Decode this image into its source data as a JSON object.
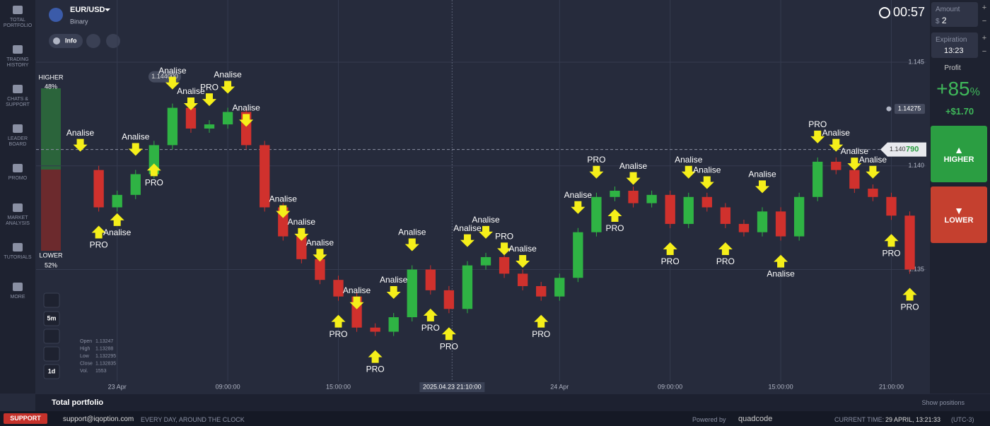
{
  "sidebar": [
    [
      "TOTAL",
      "PORTFOLIO"
    ],
    [
      "TRADING",
      "HISTORY"
    ],
    [
      "CHATS &",
      "SUPPORT"
    ],
    [
      "LEADER",
      "BOARD"
    ],
    [
      "PROMO"
    ],
    [
      "MARKET",
      "ANALYSIS"
    ],
    [
      "TUTORIALS"
    ],
    [
      "MORE"
    ]
  ],
  "header": {
    "pair": "EUR/USD",
    "mode": "Binary",
    "info": "Info",
    "timer": "00:57"
  },
  "trade_panel": {
    "amount_label": "Amount",
    "amount_currency": "$",
    "amount": "2",
    "plus": "+",
    "minus": "−",
    "expiration_label": "Expiration",
    "expiration": "13:23",
    "profit_label": "Profit",
    "profit_pct": "+85",
    "pct_sign": "%",
    "profit_amount": "+$1.70",
    "higher": "HIGHER",
    "lower": "LOWER"
  },
  "sentiment": {
    "higher_label": "HIGHER",
    "higher_pct": "48%",
    "lower_label": "LOWER",
    "lower_pct": "52%"
  },
  "chart_tools": [
    "5m",
    "1d"
  ],
  "ohlc": [
    [
      "Open",
      "1.13247"
    ],
    [
      "High",
      "1.13288"
    ],
    [
      "Low",
      "1.132295"
    ],
    [
      "Close",
      "1.132835"
    ],
    [
      "Vol.",
      "1553"
    ]
  ],
  "chart": {
    "type": "candlestick",
    "x": [
      -2,
      -1,
      0,
      1,
      2,
      3,
      4,
      5,
      6,
      7,
      8,
      9,
      10,
      11,
      12,
      13,
      14,
      15,
      16,
      17,
      18,
      19,
      20,
      21,
      22,
      23,
      24,
      25,
      26,
      27,
      28,
      29,
      30,
      31,
      32,
      33,
      34,
      35,
      36,
      37,
      38,
      39,
      40,
      41,
      42,
      43
    ],
    "values": [
      1.1398,
      1.138,
      1.1386,
      1.1396,
      1.141,
      1.1428,
      1.1418,
      1.142,
      1.1426,
      1.141,
      1.138,
      1.1366,
      1.1355,
      1.1345,
      1.1337,
      1.1322,
      1.132,
      1.1327,
      1.135,
      1.134,
      1.1331,
      1.1352,
      1.1356,
      1.1348,
      1.1342,
      1.1337,
      1.1346,
      1.1368,
      1.1385,
      1.1388,
      1.1382,
      1.1386,
      1.1372,
      1.1385,
      1.138,
      1.1372,
      1.1368,
      1.1378,
      1.1366,
      1.1385,
      1.1402,
      1.1398,
      1.1389,
      1.1385,
      1.1376,
      1.135
    ],
    "xlim": [
      -4.4,
      43.9
    ],
    "xticks": [
      {
        "value": 0,
        "label": "23 Apr"
      },
      {
        "value": 6,
        "label": "09:00:00"
      },
      {
        "value": 12,
        "label": "15:00:00"
      },
      {
        "value": 24,
        "label": "24 Apr"
      },
      {
        "value": 30,
        "label": "09:00:00"
      },
      {
        "value": 36,
        "label": "15:00:00"
      },
      {
        "value": 42,
        "label": "21:00:00"
      }
    ],
    "cursor": {
      "value": 18.17,
      "label": "2025.04.23 21:10:00"
    },
    "ylim": [
      1.1296,
      1.148
    ],
    "yticks": [
      1.145,
      {
        "value": 1.14,
        "label": "1.140"
      },
      1.135
    ],
    "price_marker": {
      "value": 1.1443,
      "label": "1.144000"
    },
    "alert_price": 1.14275,
    "current_price": {
      "value": 1.14079,
      "label_main": "1.140",
      "label_tail": "790"
    },
    "signals": [
      {
        "x": -2,
        "label": "Analise",
        "direction": "down"
      },
      {
        "x": -1,
        "label": "PRO",
        "direction": "up"
      },
      {
        "x": 0,
        "label": "Analise",
        "direction": "up"
      },
      {
        "x": 1,
        "label": "Analise",
        "direction": "down"
      },
      {
        "x": 2,
        "label": "PRO",
        "direction": "up"
      },
      {
        "x": 3,
        "label": "Analise",
        "direction": "down"
      },
      {
        "x": 4,
        "label": "Analise",
        "direction": "down"
      },
      {
        "x": 5,
        "label": "PRO",
        "direction": "down"
      },
      {
        "x": 6,
        "label": "Analise",
        "direction": "down"
      },
      {
        "x": 7,
        "label": "Analise",
        "direction": "down"
      },
      {
        "x": 9,
        "label": "Analise",
        "direction": "down"
      },
      {
        "x": 10,
        "label": "Analise",
        "direction": "down"
      },
      {
        "x": 11,
        "label": "Analise",
        "direction": "down"
      },
      {
        "x": 12,
        "label": "PRO",
        "direction": "up"
      },
      {
        "x": 13,
        "label": "Analise",
        "direction": "down"
      },
      {
        "x": 14,
        "label": "PRO",
        "direction": "up"
      },
      {
        "x": 15,
        "label": "Analise",
        "direction": "down"
      },
      {
        "x": 16,
        "label": "Analise",
        "direction": "down"
      },
      {
        "x": 17,
        "label": "PRO",
        "direction": "up"
      },
      {
        "x": 18,
        "label": "PRO",
        "direction": "up"
      },
      {
        "x": 19,
        "label": "Analise",
        "direction": "down"
      },
      {
        "x": 20,
        "label": "Analise",
        "direction": "down"
      },
      {
        "x": 21,
        "label": "PRO",
        "direction": "down"
      },
      {
        "x": 22,
        "label": "Analise",
        "direction": "down"
      },
      {
        "x": 23,
        "label": "PRO",
        "direction": "up"
      },
      {
        "x": 25,
        "label": "Analise",
        "direction": "down"
      },
      {
        "x": 26,
        "label": "PRO",
        "direction": "down"
      },
      {
        "x": 27,
        "label": "PRO",
        "direction": "up"
      },
      {
        "x": 28,
        "label": "Analise",
        "direction": "down"
      },
      {
        "x": 30,
        "label": "PRO",
        "direction": "up"
      },
      {
        "x": 31,
        "label": "Analise",
        "direction": "down"
      },
      {
        "x": 32,
        "label": "Analise",
        "direction": "down"
      },
      {
        "x": 33,
        "label": "PRO",
        "direction": "up"
      },
      {
        "x": 35,
        "label": "Analise",
        "direction": "down"
      },
      {
        "x": 36,
        "label": "Analise",
        "direction": "up"
      },
      {
        "x": 38,
        "label": "PRO",
        "direction": "down"
      },
      {
        "x": 39,
        "label": "Analise",
        "direction": "down"
      },
      {
        "x": 40,
        "label": "Analise",
        "direction": "down"
      },
      {
        "x": 41,
        "label": "Analise",
        "direction": "down"
      },
      {
        "x": 42,
        "label": "PRO",
        "direction": "up"
      },
      {
        "x": 43,
        "label": "PRO",
        "direction": "up"
      }
    ]
  },
  "footer": {
    "total_portfolio": "Total portfolio",
    "show_positions": "Show positions",
    "support": "SUPPORT",
    "email": "support@iqoption.com",
    "tagline": "EVERY DAY, AROUND THE CLOCK",
    "powered": "Powered by",
    "brand": "quadcode",
    "current_time_label": "CURRENT TIME:",
    "current_time": "29 APRIL, 13:21:33",
    "tz": "(UTC-3)"
  }
}
